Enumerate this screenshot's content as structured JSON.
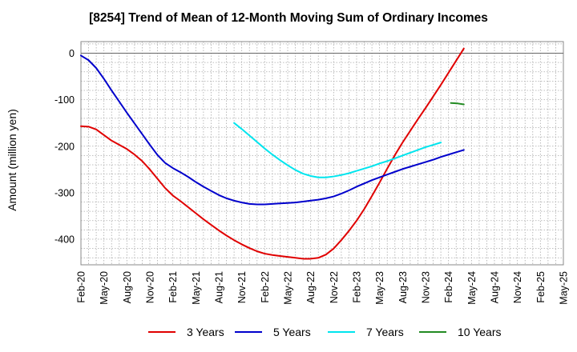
{
  "chart_data": {
    "type": "line",
    "title": "[8254]  Trend of Mean of 12-Month Moving Sum of Ordinary Incomes",
    "xlabel": "",
    "ylabel": "Amount (million yen)",
    "ylim": [
      -455,
      25
    ],
    "y_ticks": [
      0,
      -100,
      -200,
      -300,
      -400
    ],
    "x_start": "2020-02",
    "x_end": "2025-05",
    "x_ticks": [
      "Feb-20",
      "May-20",
      "Aug-20",
      "Nov-20",
      "Feb-21",
      "May-21",
      "Aug-21",
      "Nov-21",
      "Feb-22",
      "May-22",
      "Aug-22",
      "Nov-22",
      "Feb-23",
      "May-23",
      "Aug-23",
      "Nov-23",
      "Feb-24",
      "May-24",
      "Aug-24",
      "Nov-24",
      "Feb-25",
      "May-25"
    ],
    "grid": true,
    "legend_position": "bottom",
    "series": [
      {
        "name": "3 Years",
        "color": "#e00000",
        "points": [
          [
            0,
            -157
          ],
          [
            1,
            -158
          ],
          [
            2,
            -164
          ],
          [
            3,
            -176
          ],
          [
            4,
            -188
          ],
          [
            5,
            -197
          ],
          [
            6,
            -206
          ],
          [
            7,
            -218
          ],
          [
            8,
            -232
          ],
          [
            9,
            -250
          ],
          [
            10,
            -270
          ],
          [
            11,
            -290
          ],
          [
            12,
            -306
          ],
          [
            13,
            -318
          ],
          [
            14,
            -331
          ],
          [
            15,
            -344
          ],
          [
            16,
            -357
          ],
          [
            17,
            -369
          ],
          [
            18,
            -381
          ],
          [
            19,
            -392
          ],
          [
            20,
            -402
          ],
          [
            21,
            -411
          ],
          [
            22,
            -419
          ],
          [
            23,
            -426
          ],
          [
            24,
            -431
          ],
          [
            25,
            -434
          ],
          [
            26,
            -436
          ],
          [
            27,
            -438
          ],
          [
            28,
            -440
          ],
          [
            29,
            -442
          ],
          [
            30,
            -442
          ],
          [
            31,
            -440
          ],
          [
            32,
            -433
          ],
          [
            33,
            -420
          ],
          [
            34,
            -402
          ],
          [
            35,
            -382
          ],
          [
            36,
            -360
          ],
          [
            37,
            -335
          ],
          [
            38,
            -307
          ],
          [
            39,
            -278
          ],
          [
            40,
            -248
          ],
          [
            41,
            -219
          ],
          [
            42,
            -192
          ],
          [
            43,
            -167
          ],
          [
            44,
            -142
          ],
          [
            45,
            -118
          ],
          [
            46,
            -93
          ],
          [
            47,
            -68
          ],
          [
            48,
            -42
          ],
          [
            49,
            -16
          ],
          [
            50,
            10
          ]
        ]
      },
      {
        "name": "5 Years",
        "color": "#0000cc",
        "points": [
          [
            0,
            -5
          ],
          [
            1,
            -15
          ],
          [
            2,
            -32
          ],
          [
            3,
            -55
          ],
          [
            4,
            -80
          ],
          [
            5,
            -104
          ],
          [
            6,
            -128
          ],
          [
            7,
            -151
          ],
          [
            8,
            -174
          ],
          [
            9,
            -197
          ],
          [
            10,
            -219
          ],
          [
            11,
            -236
          ],
          [
            12,
            -247
          ],
          [
            13,
            -256
          ],
          [
            14,
            -266
          ],
          [
            15,
            -277
          ],
          [
            16,
            -287
          ],
          [
            17,
            -296
          ],
          [
            18,
            -305
          ],
          [
            19,
            -312
          ],
          [
            20,
            -317
          ],
          [
            21,
            -321
          ],
          [
            22,
            -324
          ],
          [
            23,
            -325
          ],
          [
            24,
            -325
          ],
          [
            25,
            -324
          ],
          [
            26,
            -323
          ],
          [
            27,
            -322
          ],
          [
            28,
            -321
          ],
          [
            29,
            -319
          ],
          [
            30,
            -317
          ],
          [
            31,
            -315
          ],
          [
            32,
            -312
          ],
          [
            33,
            -308
          ],
          [
            34,
            -302
          ],
          [
            35,
            -295
          ],
          [
            36,
            -287
          ],
          [
            37,
            -280
          ],
          [
            38,
            -273
          ],
          [
            39,
            -267
          ],
          [
            40,
            -261
          ],
          [
            41,
            -255
          ],
          [
            42,
            -249
          ],
          [
            43,
            -244
          ],
          [
            44,
            -239
          ],
          [
            45,
            -234
          ],
          [
            46,
            -229
          ],
          [
            47,
            -223
          ],
          [
            48,
            -218
          ],
          [
            49,
            -213
          ],
          [
            50,
            -208
          ]
        ]
      },
      {
        "name": "7 Years",
        "color": "#00e5ee",
        "points": [
          [
            20,
            -150
          ],
          [
            21,
            -163
          ],
          [
            22,
            -177
          ],
          [
            23,
            -191
          ],
          [
            24,
            -205
          ],
          [
            25,
            -218
          ],
          [
            26,
            -230
          ],
          [
            27,
            -241
          ],
          [
            28,
            -251
          ],
          [
            29,
            -259
          ],
          [
            30,
            -264
          ],
          [
            31,
            -267
          ],
          [
            32,
            -267
          ],
          [
            33,
            -265
          ],
          [
            34,
            -262
          ],
          [
            35,
            -258
          ],
          [
            36,
            -253
          ],
          [
            37,
            -248
          ],
          [
            38,
            -243
          ],
          [
            39,
            -237
          ],
          [
            40,
            -232
          ],
          [
            41,
            -226
          ],
          [
            42,
            -220
          ],
          [
            43,
            -214
          ],
          [
            44,
            -208
          ],
          [
            45,
            -202
          ],
          [
            46,
            -197
          ],
          [
            47,
            -192
          ]
        ]
      },
      {
        "name": "10 Years",
        "color": "#228b22",
        "points": [
          [
            48.3,
            -107
          ],
          [
            49.2,
            -108
          ],
          [
            50,
            -110
          ]
        ]
      }
    ]
  }
}
